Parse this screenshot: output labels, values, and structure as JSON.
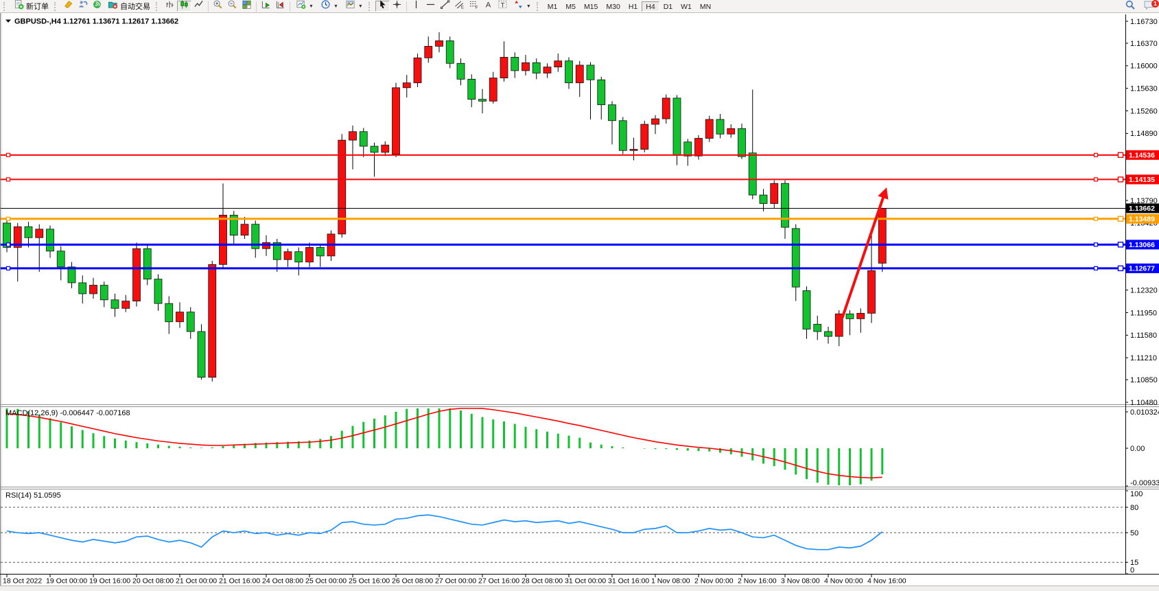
{
  "toolbar": {
    "new_order_label": "新订单",
    "autotrading_label": "自动交易",
    "timeframes": [
      "M1",
      "M5",
      "M15",
      "M30",
      "H1",
      "H4",
      "D1",
      "W1",
      "MN"
    ],
    "active_timeframe": "H4",
    "notification_badge": "1"
  },
  "chart_header": {
    "symbol": "GBPUSD-,H4",
    "ohlc_text": "1.12761 1.13671 1.12617 1.13662"
  },
  "colors": {
    "bull": "#f50f0f",
    "bear": "#12c22e",
    "wick": "#000000",
    "level_red": "#ff0000",
    "level_orange": "#ff9f00",
    "level_blue": "#0000ff",
    "bid_black": "#000000",
    "macd_histogram": "#12c22e",
    "macd_signal": "#ff0000",
    "rsi_line": "#1e90ff",
    "arrow": "#f50f0f"
  },
  "chart_data": [
    {
      "id": "price",
      "type": "candlestick",
      "title": "GBPUSD-,H4",
      "ohlc_header": {
        "open": "1.12761",
        "high": "1.13671",
        "low": "1.12617",
        "close": "1.13662"
      },
      "ylim": [
        1.10446,
        1.16843
      ],
      "y_ticks": [
        "1.16730",
        "1.16370",
        "1.16000",
        "1.15630",
        "1.15260",
        "1.14890",
        "1.13790",
        "1.13420",
        "1.12320",
        "1.11950",
        "1.11580",
        "1.11210",
        "1.10850",
        "1.10480"
      ],
      "x_ticks": [
        {
          "bar": 0,
          "label": "18 Oct 2022"
        },
        {
          "bar": 4,
          "label": "19 Oct 00:00"
        },
        {
          "bar": 8,
          "label": "19 Oct 16:00"
        },
        {
          "bar": 12,
          "label": "20 Oct 08:00"
        },
        {
          "bar": 16,
          "label": "21 Oct 00:00"
        },
        {
          "bar": 20,
          "label": "21 Oct 16:00"
        },
        {
          "bar": 24,
          "label": "24 Oct 08:00"
        },
        {
          "bar": 28,
          "label": "25 Oct 00:00"
        },
        {
          "bar": 32,
          "label": "25 Oct 16:00"
        },
        {
          "bar": 36,
          "label": "26 Oct 08:00"
        },
        {
          "bar": 40,
          "label": "27 Oct 00:00"
        },
        {
          "bar": 44,
          "label": "27 Oct 16:00"
        },
        {
          "bar": 48,
          "label": "28 Oct 08:00"
        },
        {
          "bar": 52,
          "label": "31 Oct 00:00"
        },
        {
          "bar": 56,
          "label": "31 Oct 16:00"
        },
        {
          "bar": 60,
          "label": "1 Nov 08:00"
        },
        {
          "bar": 64,
          "label": "2 Nov 00:00"
        },
        {
          "bar": 68,
          "label": "2 Nov 16:00"
        },
        {
          "bar": 72,
          "label": "3 Nov 08:00"
        },
        {
          "bar": 76,
          "label": "4 Nov 00:00"
        },
        {
          "bar": 80,
          "label": "4 Nov 16:00"
        }
      ],
      "levels": [
        {
          "value": "1.14536",
          "color": "#ff0000",
          "width": 2
        },
        {
          "value": "1.14135",
          "color": "#ff0000",
          "width": 2
        },
        {
          "value": "1.13489",
          "color": "#ff9f00",
          "width": 3
        },
        {
          "value": "1.13066",
          "color": "#0000ff",
          "width": 3
        },
        {
          "value": "1.12677",
          "color": "#0000ff",
          "width": 3
        }
      ],
      "bid_line": {
        "value": "1.13662"
      },
      "arrow_annotation": {
        "x1_bar": 77.3,
        "y1_price": 1.11865,
        "x2_bar": 81.4,
        "y2_price": 1.14005
      },
      "ohlc": [
        [
          1.1342,
          1.135,
          1.1294,
          1.1302
        ],
        [
          1.1302,
          1.1342,
          1.1246,
          1.1336
        ],
        [
          1.1336,
          1.1344,
          1.1302,
          1.1318
        ],
        [
          1.1318,
          1.134,
          1.1262,
          1.1332
        ],
        [
          1.1332,
          1.1338,
          1.1285,
          1.1296
        ],
        [
          1.1296,
          1.1304,
          1.1248,
          1.127
        ],
        [
          1.127,
          1.1278,
          1.1235,
          1.1244
        ],
        [
          1.1244,
          1.1256,
          1.121,
          1.1226
        ],
        [
          1.1226,
          1.1252,
          1.1218,
          1.124
        ],
        [
          1.124,
          1.1246,
          1.1204,
          1.1216
        ],
        [
          1.1216,
          1.1226,
          1.1188,
          1.1202
        ],
        [
          1.1202,
          1.1224,
          1.1196,
          1.1214
        ],
        [
          1.1214,
          1.131,
          1.1205,
          1.13
        ],
        [
          1.13,
          1.1308,
          1.124,
          1.125
        ],
        [
          1.125,
          1.1258,
          1.1198,
          1.121
        ],
        [
          1.121,
          1.1222,
          1.116,
          1.118
        ],
        [
          1.118,
          1.1212,
          1.117,
          1.1196
        ],
        [
          1.1196,
          1.1204,
          1.1152,
          1.1164
        ],
        [
          1.1164,
          1.1176,
          1.1085,
          1.1089
        ],
        [
          1.1089,
          1.128,
          1.1082,
          1.1274
        ],
        [
          1.1274,
          1.1407,
          1.1268,
          1.1355
        ],
        [
          1.1355,
          1.1362,
          1.1308,
          1.1322
        ],
        [
          1.1322,
          1.1352,
          1.1316,
          1.134
        ],
        [
          1.134,
          1.1346,
          1.1285,
          1.13
        ],
        [
          1.13,
          1.1322,
          1.1288,
          1.131
        ],
        [
          1.131,
          1.1316,
          1.1262,
          1.1282
        ],
        [
          1.1282,
          1.13,
          1.127,
          1.1295
        ],
        [
          1.1295,
          1.1302,
          1.1256,
          1.1278
        ],
        [
          1.1278,
          1.131,
          1.127,
          1.1302
        ],
        [
          1.1302,
          1.1308,
          1.127,
          1.1288
        ],
        [
          1.1288,
          1.133,
          1.128,
          1.1324
        ],
        [
          1.1324,
          1.1488,
          1.1318,
          1.1478
        ],
        [
          1.1478,
          1.1502,
          1.143,
          1.1492
        ],
        [
          1.1492,
          1.1498,
          1.145,
          1.1468
        ],
        [
          1.1468,
          1.1474,
          1.1418,
          1.1458
        ],
        [
          1.1458,
          1.1476,
          1.1452,
          1.147
        ],
        [
          1.1455,
          1.1572,
          1.145,
          1.1564
        ],
        [
          1.1564,
          1.1585,
          1.1548,
          1.1572
        ],
        [
          1.1572,
          1.162,
          1.1565,
          1.1613
        ],
        [
          1.1613,
          1.1648,
          1.1605,
          1.1632
        ],
        [
          1.1632,
          1.1655,
          1.1622,
          1.1641
        ],
        [
          1.1641,
          1.1648,
          1.1596,
          1.1604
        ],
        [
          1.1604,
          1.1612,
          1.1568,
          1.1578
        ],
        [
          1.1578,
          1.1586,
          1.1532,
          1.1545
        ],
        [
          1.1545,
          1.1562,
          1.1522,
          1.1542
        ],
        [
          1.1542,
          1.159,
          1.1538,
          1.158
        ],
        [
          1.158,
          1.164,
          1.1574,
          1.1614
        ],
        [
          1.1614,
          1.1622,
          1.158,
          1.1592
        ],
        [
          1.1592,
          1.1618,
          1.1584,
          1.1605
        ],
        [
          1.1605,
          1.1612,
          1.1578,
          1.1588
        ],
        [
          1.1588,
          1.1604,
          1.158,
          1.1598
        ],
        [
          1.1598,
          1.162,
          1.159,
          1.1608
        ],
        [
          1.1608,
          1.1614,
          1.1562,
          1.1572
        ],
        [
          1.1572,
          1.1608,
          1.1549,
          1.1601
        ],
        [
          1.1601,
          1.1606,
          1.1512,
          1.1577
        ],
        [
          1.1577,
          1.1582,
          1.1512,
          1.1536
        ],
        [
          1.1536,
          1.1542,
          1.1471,
          1.151
        ],
        [
          1.151,
          1.1516,
          1.1455,
          1.1461
        ],
        [
          1.1461,
          1.1482,
          1.1445,
          1.1463
        ],
        [
          1.1463,
          1.151,
          1.1458,
          1.1504
        ],
        [
          1.1504,
          1.1519,
          1.1488,
          1.1513
        ],
        [
          1.1513,
          1.1553,
          1.1505,
          1.1547
        ],
        [
          1.1547,
          1.1552,
          1.1437,
          1.1453
        ],
        [
          1.1475,
          1.148,
          1.1436,
          1.1452
        ],
        [
          1.1452,
          1.1486,
          1.1446,
          1.1481
        ],
        [
          1.1481,
          1.1518,
          1.1475,
          1.1512
        ],
        [
          1.1512,
          1.1521,
          1.1481,
          1.1488
        ],
        [
          1.1488,
          1.1504,
          1.1482,
          1.1497
        ],
        [
          1.1497,
          1.1505,
          1.1447,
          1.1451
        ],
        [
          1.1457,
          1.1561,
          1.1381,
          1.1388
        ],
        [
          1.1388,
          1.1398,
          1.1361,
          1.1374
        ],
        [
          1.1374,
          1.1412,
          1.1366,
          1.1407
        ],
        [
          1.1407,
          1.1412,
          1.1316,
          1.1335
        ],
        [
          1.1333,
          1.134,
          1.1214,
          1.1237
        ],
        [
          1.1231,
          1.1238,
          1.1152,
          1.1168
        ],
        [
          1.1176,
          1.119,
          1.115,
          1.1164
        ],
        [
          1.1164,
          1.1172,
          1.1144,
          1.1156
        ],
        [
          1.1156,
          1.1199,
          1.114,
          1.1193
        ],
        [
          1.1193,
          1.1199,
          1.1158,
          1.1185
        ],
        [
          1.1185,
          1.1202,
          1.1162,
          1.1194
        ],
        [
          1.1194,
          1.1325,
          1.1178,
          1.1264
        ],
        [
          1.12761,
          1.13671,
          1.12617,
          1.13662
        ]
      ]
    },
    {
      "id": "macd",
      "type": "bar",
      "label": "MACD(12,26,9)",
      "values_label": "-0.006447 -0.007168",
      "y_ticks": [
        "0.010324",
        "0.00",
        "-0.009332"
      ],
      "ylim": [
        -0.0103,
        0.010324
      ],
      "histogram": [
        0.01,
        0.0097,
        0.0091,
        0.0083,
        0.0074,
        0.0064,
        0.0054,
        0.0045,
        0.0037,
        0.003,
        0.0024,
        0.0019,
        0.0015,
        0.0012,
        0.0009,
        0.0006,
        0.0004,
        0.0002,
        0.0001,
        0.0002,
        0.0005,
        0.0008,
        0.0011,
        0.0013,
        0.0014,
        0.0015,
        0.0016,
        0.0017,
        0.0019,
        0.0023,
        0.003,
        0.0043,
        0.0055,
        0.0065,
        0.0073,
        0.0081,
        0.009,
        0.0097,
        0.0102,
        0.0103,
        0.0102,
        0.0099,
        0.0093,
        0.0085,
        0.0077,
        0.0071,
        0.0066,
        0.006,
        0.0053,
        0.0047,
        0.0041,
        0.0036,
        0.0031,
        0.0026,
        0.0014,
        0.0009,
        0.0005,
        0.0002,
        0.0,
        -0.0001,
        -0.0002,
        -0.0002,
        -0.0004,
        -0.0006,
        -0.0007,
        -0.0008,
        -0.0011,
        -0.0015,
        -0.0021,
        -0.003,
        -0.0038,
        -0.0044,
        -0.0053,
        -0.0065,
        -0.0076,
        -0.0085,
        -0.009,
        -0.0093,
        -0.00933,
        -0.0089,
        -0.008,
        -0.006447
      ],
      "signal": [
        0.0085,
        0.0083,
        0.008,
        0.0076,
        0.0071,
        0.0066,
        0.006,
        0.0054,
        0.0048,
        0.0042,
        0.0036,
        0.0031,
        0.0026,
        0.0022,
        0.0018,
        0.0015,
        0.0012,
        0.001,
        0.0008,
        0.0007,
        0.0007,
        0.0008,
        0.0009,
        0.001,
        0.0011,
        0.0012,
        0.0013,
        0.0014,
        0.0015,
        0.0017,
        0.002,
        0.0025,
        0.0031,
        0.0038,
        0.0045,
        0.0052,
        0.006,
        0.0068,
        0.0076,
        0.0084,
        0.0091,
        0.0096,
        0.0099,
        0.01,
        0.0098,
        0.0095,
        0.0091,
        0.0087,
        0.0082,
        0.0077,
        0.0072,
        0.0067,
        0.0061,
        0.0056,
        0.005,
        0.0044,
        0.0038,
        0.0032,
        0.0026,
        0.0021,
        0.0016,
        0.0012,
        0.0008,
        0.0005,
        0.0002,
        0.0,
        -0.0003,
        -0.0006,
        -0.001,
        -0.0015,
        -0.0021,
        -0.0027,
        -0.0034,
        -0.0042,
        -0.005,
        -0.0057,
        -0.0063,
        -0.0067,
        -0.007,
        -0.0072,
        -0.0073,
        -0.007168
      ]
    },
    {
      "id": "rsi",
      "type": "line",
      "label": "RSI(14)",
      "value_label": "51.0595",
      "y_ticks": [
        "100",
        "80",
        "50",
        "15",
        "0"
      ],
      "dashed_levels": [
        80,
        50,
        15
      ],
      "ylim": [
        0,
        100
      ],
      "values": [
        52,
        50,
        49,
        50,
        47,
        44,
        41,
        39,
        42,
        40,
        38,
        40,
        45,
        46,
        42,
        39,
        41,
        38,
        33,
        45,
        52,
        50,
        52,
        49,
        50,
        47,
        49,
        47,
        50,
        49,
        53,
        62,
        63,
        60,
        59,
        60,
        66,
        67,
        70,
        71,
        69,
        66,
        63,
        60,
        59,
        62,
        65,
        63,
        64,
        62,
        63,
        64,
        61,
        63,
        60,
        57,
        54,
        50,
        50,
        54,
        55,
        58,
        50,
        50,
        52,
        55,
        53,
        54,
        50,
        45,
        44,
        47,
        41,
        35,
        31,
        30,
        30,
        33,
        32,
        34,
        41,
        51.06
      ]
    }
  ]
}
